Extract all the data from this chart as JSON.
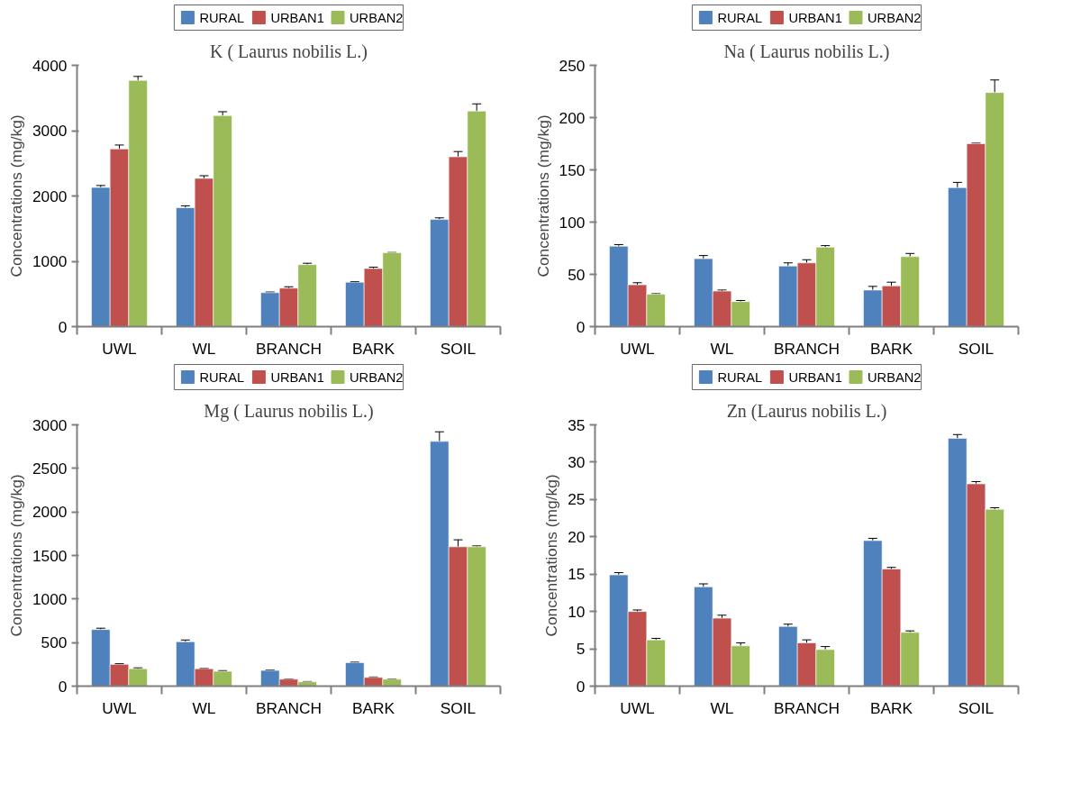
{
  "chart_data": [
    {
      "type": "bar",
      "title": "K ( Laurus nobilis L.)",
      "ylabel": "Concentrations (mg/kg)",
      "categories": [
        "UWL",
        "WL",
        "BRANCH",
        "BARK",
        "SOIL"
      ],
      "ylim": [
        0,
        4000
      ],
      "yticks": [
        0,
        1000,
        2000,
        3000,
        4000
      ],
      "legend": "top",
      "grid": false,
      "series": [
        {
          "name": "RURAL",
          "color": "#4f81bd",
          "values": [
            2130,
            1820,
            520,
            680,
            1640
          ],
          "errors": [
            30,
            30,
            10,
            10,
            25
          ]
        },
        {
          "name": "URBAN1",
          "color": "#c0504d",
          "values": [
            2720,
            2270,
            590,
            890,
            2600
          ],
          "errors": [
            60,
            40,
            20,
            20,
            80
          ]
        },
        {
          "name": "URBAN2",
          "color": "#9bbb59",
          "values": [
            3770,
            3230,
            950,
            1130,
            3300
          ],
          "errors": [
            60,
            60,
            20,
            5,
            110
          ]
        }
      ]
    },
    {
      "type": "bar",
      "title": "Na ( Laurus nobilis L.)",
      "ylabel": "Concentrations (mg/kg)",
      "categories": [
        "UWL",
        "WL",
        "BRANCH",
        "BARK",
        "SOIL"
      ],
      "ylim": [
        0,
        250
      ],
      "yticks": [
        0,
        50,
        100,
        150,
        200,
        250
      ],
      "legend": "top",
      "grid": false,
      "series": [
        {
          "name": "RURAL",
          "color": "#4f81bd",
          "values": [
            77,
            65,
            58,
            35,
            133
          ],
          "errors": [
            1.5,
            3,
            3,
            3.5,
            5
          ]
        },
        {
          "name": "URBAN1",
          "color": "#c0504d",
          "values": [
            40,
            34,
            61,
            39,
            175
          ],
          "errors": [
            2,
            1,
            3,
            3.5,
            0.5
          ]
        },
        {
          "name": "URBAN2",
          "color": "#9bbb59",
          "values": [
            31,
            24,
            76,
            67,
            224
          ],
          "errors": [
            0.5,
            1,
            1.5,
            3,
            12
          ]
        }
      ]
    },
    {
      "type": "bar",
      "title": "Mg ( Laurus nobilis L.)",
      "ylabel": "Concentrations (mg/kg)",
      "categories": [
        "UWL",
        "WL",
        "BRANCH",
        "BARK",
        "SOIL"
      ],
      "ylim": [
        0,
        3000
      ],
      "yticks": [
        0,
        500,
        1000,
        1500,
        2000,
        2500,
        3000
      ],
      "legend": "top",
      "grid": false,
      "series": [
        {
          "name": "RURAL",
          "color": "#4f81bd",
          "values": [
            650,
            510,
            180,
            270,
            2810
          ],
          "errors": [
            15,
            20,
            5,
            5,
            110
          ]
        },
        {
          "name": "URBAN1",
          "color": "#c0504d",
          "values": [
            250,
            200,
            80,
            100,
            1600
          ],
          "errors": [
            8,
            3,
            3,
            5,
            80
          ]
        },
        {
          "name": "URBAN2",
          "color": "#9bbb59",
          "values": [
            200,
            170,
            50,
            80,
            1600
          ],
          "errors": [
            10,
            8,
            3,
            3,
            10
          ]
        }
      ]
    },
    {
      "type": "bar",
      "title": "Zn (Laurus nobilis L.)",
      "ylabel": "Concentrations (mg/kg)",
      "categories": [
        "UWL",
        "WL",
        "BRANCH",
        "BARK",
        "SOIL"
      ],
      "ylim": [
        0,
        35
      ],
      "yticks": [
        0,
        5,
        10,
        15,
        20,
        25,
        30,
        35
      ],
      "legend": "top",
      "grid": false,
      "series": [
        {
          "name": "RURAL",
          "color": "#4f81bd",
          "values": [
            14.9,
            13.3,
            8.0,
            19.5,
            33.2
          ],
          "errors": [
            0.3,
            0.4,
            0.3,
            0.3,
            0.5
          ]
        },
        {
          "name": "URBAN1",
          "color": "#c0504d",
          "values": [
            10.0,
            9.1,
            5.8,
            15.7,
            27.1
          ],
          "errors": [
            0.2,
            0.4,
            0.4,
            0.2,
            0.3
          ]
        },
        {
          "name": "URBAN2",
          "color": "#9bbb59",
          "values": [
            6.2,
            5.4,
            4.9,
            7.2,
            23.7
          ],
          "errors": [
            0.2,
            0.4,
            0.4,
            0.2,
            0.2
          ]
        }
      ]
    }
  ]
}
